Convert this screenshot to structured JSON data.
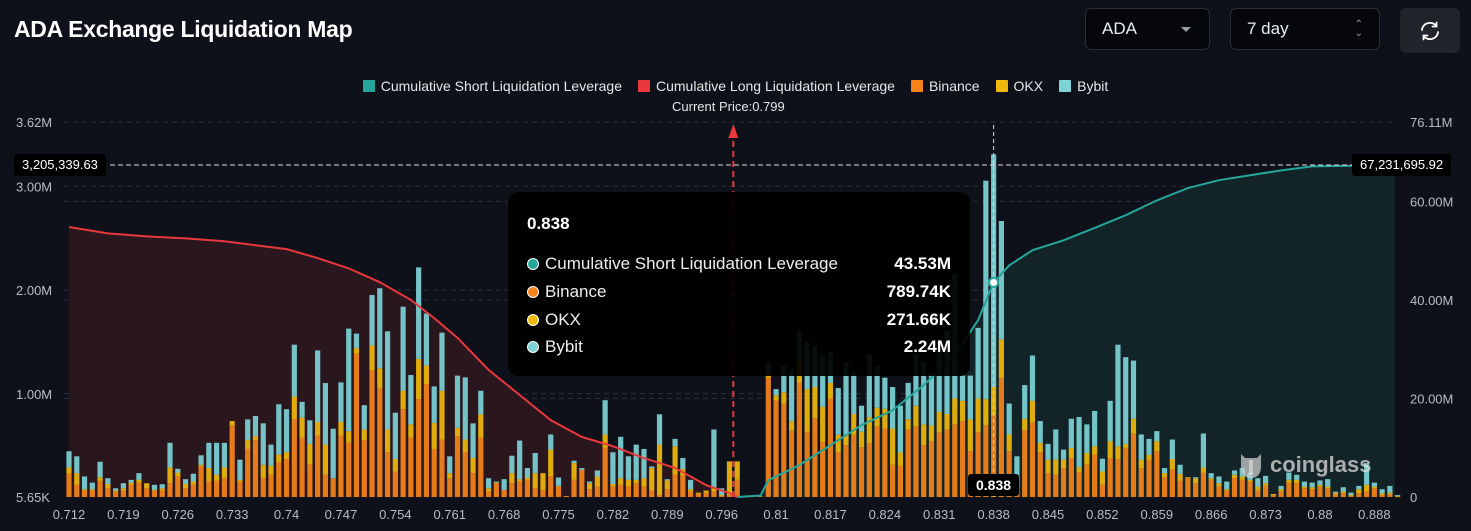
{
  "header": {
    "title": "ADA Exchange Liquidation Map"
  },
  "controls": {
    "coin": "ADA",
    "range": "7 day",
    "refresh_icon": "refresh-icon"
  },
  "legend": [
    {
      "label": "Cumulative Short Liquidation Leverage",
      "color": "#26a69a"
    },
    {
      "label": "Cumulative Long Liquidation Leverage",
      "color": "#e8383c"
    },
    {
      "label": "Binance",
      "color": "#f6841b"
    },
    {
      "label": "OKX",
      "color": "#f0b90b"
    },
    {
      "label": "Bybit",
      "color": "#7dd3d6"
    }
  ],
  "current_price_label": "Current Price:0.799",
  "crosshair": {
    "left_value": "3,205,339.63",
    "right_value": "67,231,695.92",
    "x_label": "0.838"
  },
  "tooltip": {
    "title": "0.838",
    "rows": [
      {
        "name": "Cumulative Short Liquidation Leverage",
        "value": "43.53M",
        "color": "#26a69a"
      },
      {
        "name": "Binance",
        "value": "789.74K",
        "color": "#f6841b"
      },
      {
        "name": "OKX",
        "value": "271.66K",
        "color": "#f0b90b"
      },
      {
        "name": "Bybit",
        "value": "2.24M",
        "color": "#7dd3d6"
      }
    ]
  },
  "watermark": "coinglass",
  "chart_data": {
    "type": "bar",
    "stacked": true,
    "left_axis": {
      "ticks": [
        "3.62M",
        "3.00M",
        "2.00M",
        "1.00M",
        "5.65K"
      ],
      "range_k": [
        5.65,
        3620
      ]
    },
    "right_axis": {
      "ticks": [
        "76.11M",
        "60.00M",
        "40.00M",
        "20.00M",
        "0"
      ],
      "range_m": [
        0,
        76.11
      ]
    },
    "x_tick_labels": [
      "0.712",
      "0.719",
      "0.726",
      "0.733",
      "0.74",
      "0.747",
      "0.754",
      "0.761",
      "0.768",
      "0.775",
      "0.782",
      "0.789",
      "0.796",
      "0.81",
      "0.817",
      "0.824",
      "0.831",
      "0.838",
      "0.845",
      "0.852",
      "0.859",
      "0.866",
      "0.873",
      "0.88",
      "0.888"
    ],
    "current_price": 0.799,
    "grid": true,
    "legend_position": "top",
    "prices": [
      0.712,
      0.713,
      0.714,
      0.715,
      0.716,
      0.717,
      0.718,
      0.719,
      0.72,
      0.721,
      0.722,
      0.723,
      0.724,
      0.725,
      0.726,
      0.727,
      0.728,
      0.729,
      0.73,
      0.731,
      0.732,
      0.733,
      0.734,
      0.735,
      0.736,
      0.737,
      0.738,
      0.739,
      0.74,
      0.741,
      0.742,
      0.743,
      0.744,
      0.745,
      0.746,
      0.747,
      0.748,
      0.749,
      0.75,
      0.751,
      0.752,
      0.753,
      0.754,
      0.755,
      0.756,
      0.757,
      0.758,
      0.759,
      0.76,
      0.761,
      0.762,
      0.763,
      0.764,
      0.765,
      0.766,
      0.767,
      0.768,
      0.769,
      0.77,
      0.771,
      0.772,
      0.773,
      0.774,
      0.775,
      0.776,
      0.777,
      0.778,
      0.779,
      0.78,
      0.781,
      0.782,
      0.783,
      0.784,
      0.785,
      0.786,
      0.787,
      0.788,
      0.789,
      0.79,
      0.791,
      0.792,
      0.793,
      0.794,
      0.795,
      0.796,
      0.798,
      0.8,
      0.802,
      0.804,
      0.806,
      0.808,
      0.81,
      0.811,
      0.812,
      0.813,
      0.814,
      0.815,
      0.816,
      0.817,
      0.818,
      0.819,
      0.82,
      0.821,
      0.822,
      0.823,
      0.824,
      0.825,
      0.826,
      0.827,
      0.828,
      0.829,
      0.83,
      0.831,
      0.832,
      0.833,
      0.834,
      0.835,
      0.836,
      0.837,
      0.838,
      0.839,
      0.84,
      0.841,
      0.842,
      0.843,
      0.844,
      0.845,
      0.846,
      0.847,
      0.848,
      0.849,
      0.85,
      0.851,
      0.852,
      0.853,
      0.854,
      0.855,
      0.856,
      0.857,
      0.858,
      0.859,
      0.86,
      0.861,
      0.862,
      0.863,
      0.864,
      0.865,
      0.866,
      0.867,
      0.868,
      0.869,
      0.87,
      0.871,
      0.872,
      0.873,
      0.874,
      0.875,
      0.876,
      0.877,
      0.878,
      0.879,
      0.88,
      0.881,
      0.882,
      0.883,
      0.884,
      0.885,
      0.886,
      0.887,
      0.888,
      0.889,
      0.89
    ],
    "series": [
      {
        "name": "Binance",
        "unit": "K",
        "values": [
          224,
          117,
          62,
          62,
          155,
          84,
          52,
          62,
          117,
          139,
          84,
          62,
          62,
          133,
          198,
          84,
          117,
          295,
          149,
          155,
          181,
          690,
          149,
          463,
          548,
          181,
          214,
          334,
          366,
          748,
          570,
          311,
          593,
          214,
          181,
          593,
          522,
          1380,
          548,
          1218,
          1047,
          431,
          246,
          846,
          570,
          943,
          1089,
          463,
          554,
          181,
          586,
          431,
          230,
          570,
          52,
          133,
          68,
          133,
          149,
          165,
          84,
          68,
          198,
          100,
          10,
          165,
          262,
          75,
          100,
          473,
          100,
          117,
          100,
          133,
          100,
          62,
          19,
          75,
          214,
          204,
          52,
          30,
          40,
          52,
          10,
          19,
          165,
          5,
          8,
          5,
          1150,
          930,
          900,
          640,
          1100,
          620,
          760,
          530,
          950,
          430,
          500,
          600,
          480,
          520,
          680,
          660,
          310,
          300,
          650,
          680,
          500,
          540,
          620,
          650,
          700,
          732,
          441,
          625,
          690,
          790,
          1144,
          441,
          165,
          642,
          716,
          431,
          230,
          214,
          279,
          376,
          236,
          311,
          408,
          117,
          376,
          366,
          473,
          609,
          279,
          353,
          441,
          191,
          262,
          159,
          181,
          133,
          236,
          165,
          100,
          62,
          181,
          165,
          149,
          62,
          107,
          19,
          52,
          139,
          133,
          84,
          75,
          100,
          84,
          29,
          36,
          10,
          36,
          52,
          84,
          19,
          29,
          3
        ]
      },
      {
        "name": "OKX",
        "unit": "K",
        "values": [
          61,
          113,
          13,
          13,
          36,
          42,
          10,
          22,
          22,
          26,
          49,
          6,
          22,
          152,
          38,
          42,
          32,
          16,
          130,
          59,
          104,
          42,
          16,
          85,
          38,
          130,
          87,
          74,
          65,
          221,
          195,
          201,
          130,
          291,
          0,
          130,
          113,
          55,
          103,
          243,
          194,
          220,
          120,
          178,
          130,
          389,
          178,
          253,
          470,
          49,
          81,
          123,
          146,
          227,
          32,
          6,
          0,
          97,
          23,
          23,
          146,
          162,
          259,
          7,
          0,
          162,
          0,
          58,
          98,
          130,
          26,
          64,
          65,
          32,
          81,
          217,
          486,
          85,
          275,
          65,
          23,
          12,
          22,
          32,
          10,
          324,
          178,
          0,
          0,
          0,
          60,
          50,
          110,
          90,
          200,
          420,
          300,
          340,
          150,
          170,
          100,
          200,
          150,
          250,
          180,
          190,
          350,
          130,
          100,
          200,
          200,
          150,
          200,
          150,
          250,
          195,
          307,
          324,
          253,
          272,
          376,
          162,
          23,
          113,
          211,
          91,
          130,
          146,
          81,
          97,
          52,
          113,
          81,
          129,
          162,
          123,
          39,
          146,
          81,
          55,
          97,
          39,
          104,
          64,
          10,
          48,
          49,
          16,
          33,
          13,
          33,
          33,
          16,
          38,
          26,
          10,
          23,
          26,
          32,
          16,
          19,
          17,
          16,
          13,
          16,
          9,
          39,
          65,
          16,
          17,
          13,
          7
        ]
      },
      {
        "name": "Bybit",
        "unit": "K",
        "values": [
          156,
          162,
          123,
          64,
          149,
          55,
          22,
          49,
          26,
          65,
          0,
          49,
          39,
          237,
          36,
          46,
          75,
          91,
          243,
          308,
          237,
          0,
          195,
          200,
          195,
          399,
          204,
          486,
          415,
          499,
          152,
          227,
          690,
          593,
          477,
          382,
          988,
          140,
          234,
          486,
          771,
          946,
          447,
          810,
          476,
          881,
          502,
          350,
          560,
          162,
          503,
          599,
          334,
          227,
          97,
          10,
          104,
          168,
          372,
          91,
          194,
          0,
          146,
          81,
          0,
          23,
          17,
          16,
          58,
          330,
          305,
          399,
          227,
          340,
          282,
          16,
          292,
          12,
          71,
          107,
          90,
          0,
          0,
          567,
          64,
          0,
          0,
          0,
          5,
          0,
          80,
          60,
          250,
          500,
          300,
          450,
          400,
          500,
          300,
          450,
          700,
          400,
          250,
          600,
          400,
          300,
          400,
          450,
          350,
          500,
          600,
          500,
          700,
          800,
          1200,
          243,
          422,
          681,
          2106,
          2240,
          1140,
          298,
          204,
          324,
          437,
          210,
          152,
          291,
          97,
          282,
          483,
          276,
          340,
          123,
          389,
          979,
          836,
          560,
          243,
          152,
          97,
          49,
          188,
          88,
          0,
          10,
          327,
          49,
          65,
          74,
          42,
          81,
          65,
          81,
          71,
          0,
          32,
          71,
          49,
          49,
          45,
          42,
          72,
          10,
          42,
          23,
          32,
          210,
          39,
          39,
          65,
          9
        ]
      }
    ],
    "lines": [
      {
        "name": "Cumulative Long Liquidation Leverage",
        "unit": "M",
        "axis": "right",
        "points": [
          [
            0.712,
            54.8
          ],
          [
            0.717,
            53.5
          ],
          [
            0.722,
            52.9
          ],
          [
            0.727,
            52.5
          ],
          [
            0.732,
            51.9
          ],
          [
            0.737,
            50.9
          ],
          [
            0.74,
            50.3
          ],
          [
            0.744,
            48.5
          ],
          [
            0.748,
            46.4
          ],
          [
            0.752,
            43.6
          ],
          [
            0.756,
            40.0
          ],
          [
            0.759,
            36.3
          ],
          [
            0.762,
            32.3
          ],
          [
            0.766,
            25.8
          ],
          [
            0.77,
            20.7
          ],
          [
            0.774,
            15.6
          ],
          [
            0.778,
            12.2
          ],
          [
            0.782,
            10.3
          ],
          [
            0.786,
            7.9
          ],
          [
            0.79,
            5.9
          ],
          [
            0.794,
            2.4
          ],
          [
            0.798,
            0.8
          ],
          [
            0.8,
            0
          ]
        ]
      },
      {
        "name": "Cumulative Short Liquidation Leverage",
        "unit": "M",
        "axis": "right",
        "points": [
          [
            0.8,
            0
          ],
          [
            0.806,
            0.3
          ],
          [
            0.808,
            3.4
          ],
          [
            0.813,
            6.5
          ],
          [
            0.817,
            10.5
          ],
          [
            0.821,
            14.6
          ],
          [
            0.825,
            17.6
          ],
          [
            0.829,
            22.7
          ],
          [
            0.833,
            28.8
          ],
          [
            0.836,
            35.9
          ],
          [
            0.838,
            43.53
          ],
          [
            0.84,
            47.0
          ],
          [
            0.843,
            50.1
          ],
          [
            0.847,
            52.1
          ],
          [
            0.851,
            54.6
          ],
          [
            0.855,
            57.2
          ],
          [
            0.859,
            60.2
          ],
          [
            0.863,
            62.7
          ],
          [
            0.867,
            64.3
          ],
          [
            0.871,
            65.3
          ],
          [
            0.875,
            66.3
          ],
          [
            0.879,
            67.1
          ],
          [
            0.884,
            67.23
          ]
        ]
      }
    ]
  }
}
